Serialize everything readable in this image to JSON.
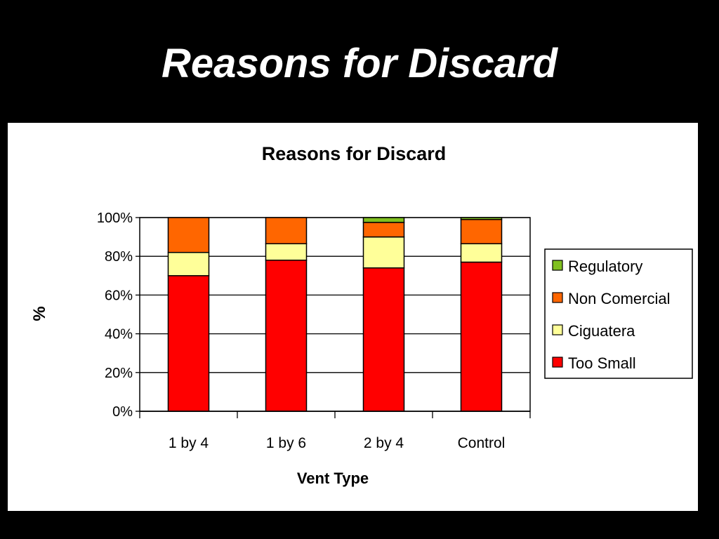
{
  "slide": {
    "title": "Reasons for Discard"
  },
  "chart_data": {
    "type": "bar",
    "stacked": true,
    "title": "Reasons for Discard",
    "xlabel": "Vent Type",
    "ylabel": "%",
    "categories": [
      "1 by 4",
      "1 by 6",
      "2 by 4",
      "Control"
    ],
    "ylim": [
      0,
      100
    ],
    "yticks": [
      "0%",
      "20%",
      "40%",
      "60%",
      "80%",
      "100%"
    ],
    "grid": true,
    "legend_position": "right",
    "series": [
      {
        "name": "Too Small",
        "color": "#ff0000",
        "values": [
          70,
          78,
          74,
          77
        ]
      },
      {
        "name": "Ciguatera",
        "color": "#ffff99",
        "values": [
          12,
          8.5,
          16,
          9.5
        ]
      },
      {
        "name": "Non Comercial",
        "color": "#ff6600",
        "values": [
          18,
          13.5,
          7.5,
          12.5
        ]
      },
      {
        "name": "Regulatory",
        "color": "#80c020",
        "values": [
          0,
          0,
          2.5,
          1
        ]
      }
    ],
    "legend_order": [
      "Regulatory",
      "Non Comercial",
      "Ciguatera",
      "Too Small"
    ]
  }
}
